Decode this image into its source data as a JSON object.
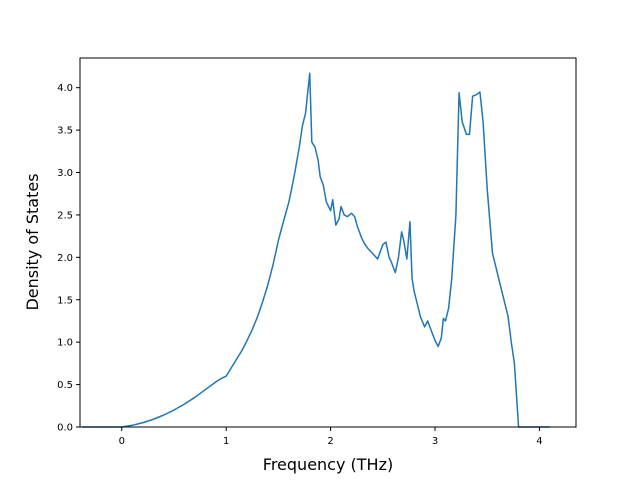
{
  "chart_data": {
    "type": "line",
    "title": "",
    "xlabel": "Frequency (THz)",
    "ylabel": "Density of States",
    "xlim": [
      -0.4,
      4.35
    ],
    "ylim": [
      0.0,
      4.35
    ],
    "xticks": [
      0,
      1,
      2,
      3,
      4
    ],
    "yticks": [
      0.0,
      0.5,
      1.0,
      1.5,
      2.0,
      2.5,
      3.0,
      3.5,
      4.0
    ],
    "xtick_labels": [
      "0",
      "1",
      "2",
      "3",
      "4"
    ],
    "ytick_labels": [
      "0.0",
      "0.5",
      "1.0",
      "1.5",
      "2.0",
      "2.5",
      "3.0",
      "3.5",
      "4.0"
    ],
    "grid": false,
    "legend": "none",
    "line_color": "#1f77b4",
    "series": [
      {
        "x": [
          -0.38,
          0.0,
          0.1,
          0.2,
          0.3,
          0.4,
          0.5,
          0.6,
          0.7,
          0.8,
          0.9,
          0.95,
          1.0,
          1.05,
          1.1,
          1.15,
          1.2,
          1.25,
          1.3,
          1.35,
          1.4,
          1.45,
          1.5,
          1.55,
          1.6,
          1.65,
          1.7,
          1.73,
          1.76,
          1.8,
          1.82,
          1.85,
          1.88,
          1.9,
          1.93,
          1.96,
          2.0,
          2.02,
          2.05,
          2.08,
          2.1,
          2.13,
          2.16,
          2.2,
          2.23,
          2.26,
          2.3,
          2.33,
          2.36,
          2.4,
          2.45,
          2.5,
          2.53,
          2.56,
          2.58,
          2.62,
          2.65,
          2.68,
          2.7,
          2.73,
          2.76,
          2.78,
          2.8,
          2.83,
          2.86,
          2.9,
          2.93,
          2.96,
          3.0,
          3.03,
          3.06,
          3.08,
          3.1,
          3.13,
          3.16,
          3.2,
          3.23,
          3.26,
          3.3,
          3.33,
          3.36,
          3.4,
          3.43,
          3.46,
          3.5,
          3.55,
          3.6,
          3.65,
          3.7,
          3.73,
          3.76,
          3.8,
          3.9,
          4.1
        ],
        "y": [
          0.0,
          0.0,
          0.02,
          0.05,
          0.09,
          0.14,
          0.2,
          0.27,
          0.35,
          0.44,
          0.53,
          0.57,
          0.6,
          0.7,
          0.8,
          0.9,
          1.02,
          1.15,
          1.3,
          1.48,
          1.68,
          1.92,
          2.2,
          2.43,
          2.65,
          2.95,
          3.3,
          3.55,
          3.7,
          4.17,
          3.36,
          3.3,
          3.15,
          2.95,
          2.85,
          2.65,
          2.55,
          2.68,
          2.38,
          2.45,
          2.6,
          2.5,
          2.48,
          2.52,
          2.48,
          2.35,
          2.22,
          2.15,
          2.1,
          2.05,
          1.98,
          2.15,
          2.18,
          2.0,
          1.95,
          1.82,
          2.0,
          2.3,
          2.2,
          1.98,
          2.42,
          1.75,
          1.6,
          1.45,
          1.3,
          1.18,
          1.25,
          1.15,
          1.02,
          0.95,
          1.05,
          1.28,
          1.25,
          1.4,
          1.75,
          2.5,
          3.94,
          3.6,
          3.45,
          3.45,
          3.9,
          3.92,
          3.95,
          3.6,
          2.8,
          2.05,
          1.8,
          1.55,
          1.3,
          1.0,
          0.75,
          0.0,
          0.0,
          0.0
        ]
      }
    ]
  }
}
